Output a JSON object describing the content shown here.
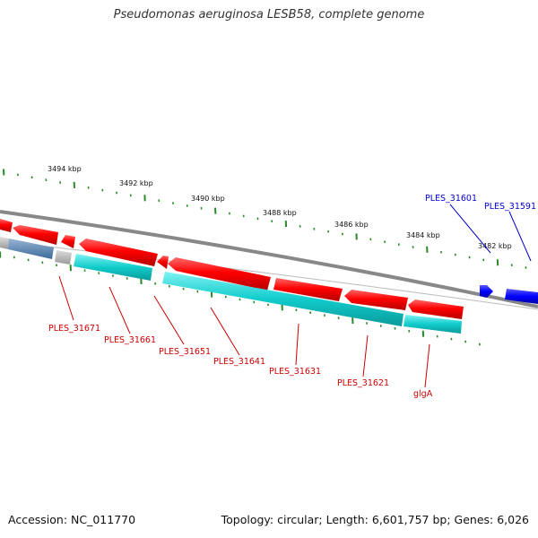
{
  "title": "Pseudomonas aeruginosa LESB58, complete genome",
  "footer": {
    "accession": "Accession: NC_011770",
    "topology": "Topology: circular; Length: 6,601,757 bp; Genes: 6,026"
  },
  "colors": {
    "forward_gene": "#ff0000",
    "forward_gene_highlight": "#0000ff",
    "reverse_gene": "#00cccc",
    "tick": "#2a8a2a",
    "backbone": "#888888",
    "label_red": "#cc0000",
    "label_blue": "#0000cc"
  },
  "scale_labels": [
    "3494 kbp",
    "3492 kbp",
    "3490 kbp",
    "3488 kbp",
    "3486 kbp",
    "3484 kbp",
    "3482 kbp"
  ],
  "gene_labels": [
    {
      "text": "PLES_31671",
      "strand": "reverse",
      "color_key": "label_red"
    },
    {
      "text": "PLES_31661",
      "strand": "reverse",
      "color_key": "label_red"
    },
    {
      "text": "PLES_31651",
      "strand": "reverse",
      "color_key": "label_red"
    },
    {
      "text": "PLES_31641",
      "strand": "reverse",
      "color_key": "label_red"
    },
    {
      "text": "PLES_31631",
      "strand": "reverse",
      "color_key": "label_red"
    },
    {
      "text": "PLES_31621",
      "strand": "reverse",
      "color_key": "label_red"
    },
    {
      "text": "glgA",
      "strand": "reverse",
      "color_key": "label_red"
    },
    {
      "text": "PLES_31601",
      "strand": "forward",
      "color_key": "label_blue"
    },
    {
      "text": "PLES_31591",
      "strand": "forward",
      "color_key": "label_blue"
    }
  ]
}
